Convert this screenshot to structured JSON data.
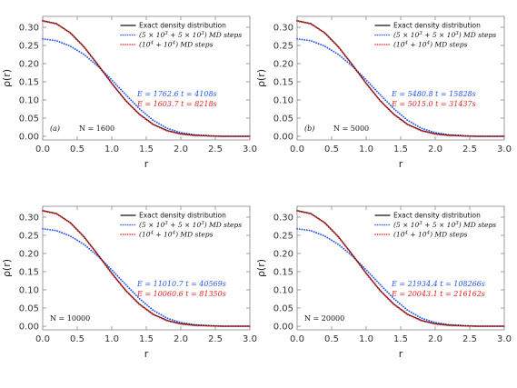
{
  "chart_data": [
    {
      "type": "line",
      "panel": "(a)",
      "n_label": "N = 1600",
      "xlabel": "r",
      "ylabel": "ρ(r)",
      "xlim": [
        0,
        3
      ],
      "ylim": [
        -0.01,
        0.33
      ],
      "xticks": [
        "0.0",
        "0.5",
        "1.0",
        "1.5",
        "2.0",
        "2.5",
        "3.0"
      ],
      "yticks": [
        "0.00",
        "0.05",
        "0.10",
        "0.15",
        "0.20",
        "0.25",
        "0.30"
      ],
      "legend_position": "top-right",
      "series": [
        {
          "name": "Exact density distribution",
          "style": "solid",
          "color": "#111111",
          "x": [
            0.0,
            0.2,
            0.4,
            0.6,
            0.8,
            1.0,
            1.2,
            1.4,
            1.6,
            1.8,
            2.0,
            2.2,
            2.4,
            2.6,
            2.8,
            3.0
          ],
          "y": [
            0.318,
            0.31,
            0.285,
            0.246,
            0.197,
            0.146,
            0.099,
            0.061,
            0.033,
            0.016,
            0.007,
            0.003,
            0.001,
            0.0,
            0.0,
            0.0
          ]
        },
        {
          "name": "(5 × 10³ + 5 × 10³) MD steps",
          "style": "dotted",
          "color": "#2255ee",
          "x": [
            0.0,
            0.2,
            0.4,
            0.6,
            0.8,
            1.0,
            1.2,
            1.4,
            1.6,
            1.8,
            2.0,
            2.2,
            2.4,
            2.6,
            2.8,
            3.0
          ],
          "y": [
            0.268,
            0.263,
            0.248,
            0.225,
            0.193,
            0.155,
            0.115,
            0.076,
            0.044,
            0.022,
            0.01,
            0.004,
            0.002,
            0.0,
            0.0,
            0.0
          ]
        },
        {
          "name": "(10⁴ + 10⁴) MD steps",
          "style": "dotted",
          "color": "#dd2222",
          "x": [
            0.0,
            0.2,
            0.4,
            0.6,
            0.8,
            1.0,
            1.2,
            1.4,
            1.6,
            1.8,
            2.0,
            2.2,
            2.4,
            2.6,
            2.8,
            3.0
          ],
          "y": [
            0.317,
            0.309,
            0.284,
            0.245,
            0.196,
            0.145,
            0.098,
            0.06,
            0.032,
            0.015,
            0.006,
            0.002,
            0.001,
            0.0,
            0.0,
            0.0
          ]
        }
      ],
      "annotations": [
        {
          "text": "E = 1762.6  t = 4108s",
          "color": "#2255ee"
        },
        {
          "text": "E = 1603.7  t = 8218s",
          "color": "#dd2222"
        }
      ]
    },
    {
      "type": "line",
      "panel": "(b)",
      "n_label": "N = 5000",
      "xlabel": "r",
      "ylabel": "ρ(r)",
      "xlim": [
        0,
        3
      ],
      "ylim": [
        -0.01,
        0.33
      ],
      "xticks": [
        "0.0",
        "0.5",
        "1.0",
        "1.5",
        "2.0",
        "2.5",
        "3.0"
      ],
      "yticks": [
        "0.00",
        "0.05",
        "0.10",
        "0.15",
        "0.20",
        "0.25",
        "0.30"
      ],
      "legend_position": "top-right",
      "series": [
        {
          "name": "Exact density distribution",
          "style": "solid",
          "color": "#111111",
          "x": [
            0.0,
            0.2,
            0.4,
            0.6,
            0.8,
            1.0,
            1.2,
            1.4,
            1.6,
            1.8,
            2.0,
            2.2,
            2.4,
            2.6,
            2.8,
            3.0
          ],
          "y": [
            0.318,
            0.31,
            0.285,
            0.246,
            0.197,
            0.146,
            0.099,
            0.061,
            0.033,
            0.016,
            0.007,
            0.003,
            0.001,
            0.0,
            0.0,
            0.0
          ]
        },
        {
          "name": "(5 × 10³ + 5 × 10³) MD steps",
          "style": "dotted",
          "color": "#2255ee",
          "x": [
            0.0,
            0.2,
            0.4,
            0.6,
            0.8,
            1.0,
            1.2,
            1.4,
            1.6,
            1.8,
            2.0,
            2.2,
            2.4,
            2.6,
            2.8,
            3.0
          ],
          "y": [
            0.268,
            0.263,
            0.248,
            0.225,
            0.193,
            0.155,
            0.115,
            0.076,
            0.044,
            0.022,
            0.01,
            0.004,
            0.002,
            0.0,
            0.0,
            0.0
          ]
        },
        {
          "name": "(10⁴ + 10⁴) MD steps",
          "style": "dotted",
          "color": "#dd2222",
          "x": [
            0.0,
            0.2,
            0.4,
            0.6,
            0.8,
            1.0,
            1.2,
            1.4,
            1.6,
            1.8,
            2.0,
            2.2,
            2.4,
            2.6,
            2.8,
            3.0
          ],
          "y": [
            0.317,
            0.309,
            0.284,
            0.245,
            0.196,
            0.145,
            0.098,
            0.06,
            0.032,
            0.015,
            0.006,
            0.002,
            0.001,
            0.0,
            0.0,
            0.0
          ]
        }
      ],
      "annotations": [
        {
          "text": "E = 5480.8  t = 15828s",
          "color": "#2255ee"
        },
        {
          "text": "E = 5015.0  t = 31437s",
          "color": "#dd2222"
        }
      ]
    },
    {
      "type": "line",
      "panel": "",
      "n_label": "N = 10000",
      "xlabel": "r",
      "ylabel": "ρ(r)",
      "xlim": [
        0,
        3
      ],
      "ylim": [
        -0.01,
        0.33
      ],
      "xticks": [
        "0.0",
        "0.5",
        "1.0",
        "1.5",
        "2.0",
        "2.5",
        "3.0"
      ],
      "yticks": [
        "0.00",
        "0.05",
        "0.10",
        "0.15",
        "0.20",
        "0.25",
        "0.30"
      ],
      "legend_position": "top-right",
      "series": [
        {
          "name": "Exact density distribution",
          "style": "solid",
          "color": "#111111",
          "x": [
            0.0,
            0.2,
            0.4,
            0.6,
            0.8,
            1.0,
            1.2,
            1.4,
            1.6,
            1.8,
            2.0,
            2.2,
            2.4,
            2.6,
            2.8,
            3.0
          ],
          "y": [
            0.318,
            0.31,
            0.285,
            0.246,
            0.197,
            0.146,
            0.099,
            0.061,
            0.033,
            0.016,
            0.007,
            0.003,
            0.001,
            0.0,
            0.0,
            0.0
          ]
        },
        {
          "name": "(5 × 10³ + 5 × 10³) MD steps",
          "style": "dotted",
          "color": "#2255ee",
          "x": [
            0.0,
            0.2,
            0.4,
            0.6,
            0.8,
            1.0,
            1.2,
            1.4,
            1.6,
            1.8,
            2.0,
            2.2,
            2.4,
            2.6,
            2.8,
            3.0
          ],
          "y": [
            0.268,
            0.263,
            0.248,
            0.225,
            0.193,
            0.155,
            0.115,
            0.076,
            0.044,
            0.022,
            0.01,
            0.004,
            0.002,
            0.0,
            0.0,
            0.0
          ]
        },
        {
          "name": "(10⁴ + 10⁴) MD steps",
          "style": "dotted",
          "color": "#dd2222",
          "x": [
            0.0,
            0.2,
            0.4,
            0.6,
            0.8,
            1.0,
            1.2,
            1.4,
            1.6,
            1.8,
            2.0,
            2.2,
            2.4,
            2.6,
            2.8,
            3.0
          ],
          "y": [
            0.317,
            0.309,
            0.284,
            0.245,
            0.196,
            0.145,
            0.098,
            0.06,
            0.032,
            0.015,
            0.006,
            0.002,
            0.001,
            0.0,
            0.0,
            0.0
          ]
        }
      ],
      "annotations": [
        {
          "text": "E = 11010.7  t = 40569s",
          "color": "#2255ee"
        },
        {
          "text": "E = 10060.6  t = 81350s",
          "color": "#dd2222"
        }
      ]
    },
    {
      "type": "line",
      "panel": "",
      "n_label": "N = 20000",
      "xlabel": "r",
      "ylabel": "ρ(r)",
      "xlim": [
        0,
        3
      ],
      "ylim": [
        -0.01,
        0.33
      ],
      "xticks": [
        "0.0",
        "0.5",
        "1.0",
        "1.5",
        "2.0",
        "2.5",
        "3.0"
      ],
      "yticks": [
        "0.00",
        "0.05",
        "0.10",
        "0.15",
        "0.20",
        "0.25",
        "0.30"
      ],
      "legend_position": "top-right",
      "series": [
        {
          "name": "Exact density distribution",
          "style": "solid",
          "color": "#111111",
          "x": [
            0.0,
            0.2,
            0.4,
            0.6,
            0.8,
            1.0,
            1.2,
            1.4,
            1.6,
            1.8,
            2.0,
            2.2,
            2.4,
            2.6,
            2.8,
            3.0
          ],
          "y": [
            0.318,
            0.31,
            0.285,
            0.246,
            0.197,
            0.146,
            0.099,
            0.061,
            0.033,
            0.016,
            0.007,
            0.003,
            0.001,
            0.0,
            0.0,
            0.0
          ]
        },
        {
          "name": "(5 × 10³ + 5 × 10³) MD steps",
          "style": "dotted",
          "color": "#2255ee",
          "x": [
            0.0,
            0.2,
            0.4,
            0.6,
            0.8,
            1.0,
            1.2,
            1.4,
            1.6,
            1.8,
            2.0,
            2.2,
            2.4,
            2.6,
            2.8,
            3.0
          ],
          "y": [
            0.268,
            0.263,
            0.248,
            0.225,
            0.193,
            0.155,
            0.115,
            0.076,
            0.044,
            0.022,
            0.01,
            0.004,
            0.002,
            0.0,
            0.0,
            0.0
          ]
        },
        {
          "name": "(10⁴ + 10⁴) MD steps",
          "style": "dotted",
          "color": "#dd2222",
          "x": [
            0.0,
            0.2,
            0.4,
            0.6,
            0.8,
            1.0,
            1.2,
            1.4,
            1.6,
            1.8,
            2.0,
            2.2,
            2.4,
            2.6,
            2.8,
            3.0
          ],
          "y": [
            0.317,
            0.309,
            0.284,
            0.245,
            0.196,
            0.145,
            0.098,
            0.06,
            0.032,
            0.015,
            0.006,
            0.002,
            0.001,
            0.0,
            0.0,
            0.0
          ]
        }
      ],
      "annotations": [
        {
          "text": "E = 21934.4  t = 108266s",
          "color": "#2255ee"
        },
        {
          "text": "E = 20043.1  t = 216162s",
          "color": "#dd2222"
        }
      ]
    }
  ]
}
